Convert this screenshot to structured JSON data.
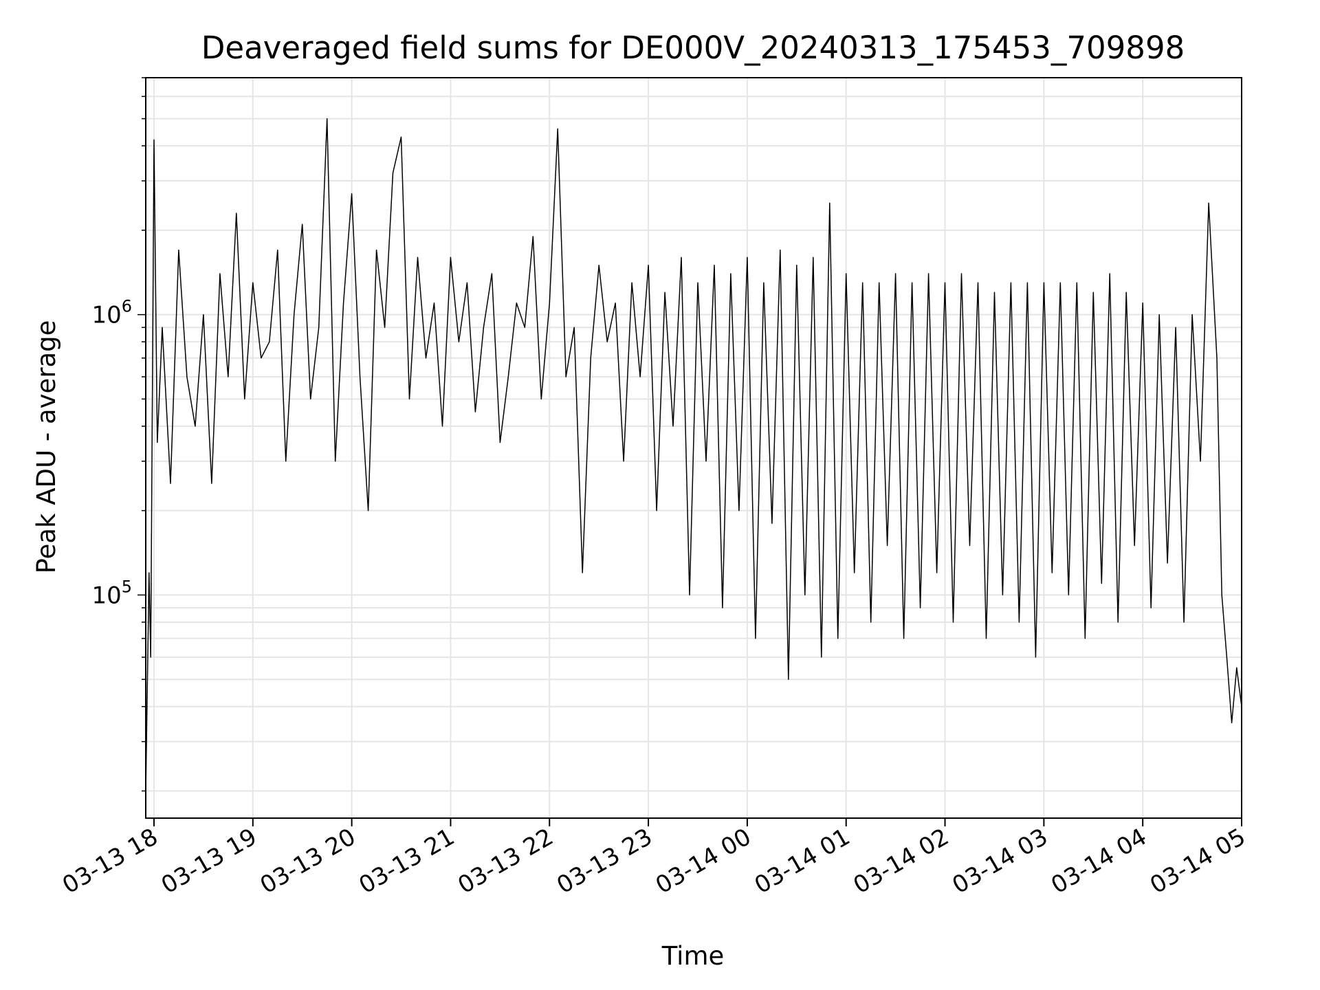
{
  "chart_data": {
    "type": "line",
    "title": "Deaveraged field sums for DE000V_20240313_175453_709898",
    "xlabel": "Time",
    "ylabel": "Peak ADU - average",
    "x_scale": "time",
    "y_scale": "log",
    "xlim": [
      "2024-03-13 17:55",
      "2024-03-14 05:00"
    ],
    "ylim": [
      16000,
      7000000
    ],
    "grid": true,
    "legend": "none",
    "line_color": "#000000",
    "grid_color": "#e5e5e5",
    "x_ticks": [
      {
        "value": "2024-03-13 18:00",
        "label": "03-13 18"
      },
      {
        "value": "2024-03-13 19:00",
        "label": "03-13 19"
      },
      {
        "value": "2024-03-13 20:00",
        "label": "03-13 20"
      },
      {
        "value": "2024-03-13 21:00",
        "label": "03-13 21"
      },
      {
        "value": "2024-03-13 22:00",
        "label": "03-13 22"
      },
      {
        "value": "2024-03-13 23:00",
        "label": "03-13 23"
      },
      {
        "value": "2024-03-14 00:00",
        "label": "03-14 00"
      },
      {
        "value": "2024-03-14 01:00",
        "label": "03-14 01"
      },
      {
        "value": "2024-03-14 02:00",
        "label": "03-14 02"
      },
      {
        "value": "2024-03-14 03:00",
        "label": "03-14 03"
      },
      {
        "value": "2024-03-14 04:00",
        "label": "03-14 04"
      },
      {
        "value": "2024-03-14 05:00",
        "label": "03-14 05"
      }
    ],
    "y_major_ticks": [
      {
        "value": 100000,
        "base": "10",
        "exp": "5"
      },
      {
        "value": 1000000,
        "base": "10",
        "exp": "6"
      }
    ],
    "series": [
      {
        "x": [
          "2024-03-13 17:55",
          "2024-03-13 17:57",
          "2024-03-13 17:58",
          "2024-03-13 18:00",
          "2024-03-13 18:02",
          "2024-03-13 18:05",
          "2024-03-13 18:10",
          "2024-03-13 18:15",
          "2024-03-13 18:20",
          "2024-03-13 18:25",
          "2024-03-13 18:30",
          "2024-03-13 18:35",
          "2024-03-13 18:40",
          "2024-03-13 18:45",
          "2024-03-13 18:50",
          "2024-03-13 18:55",
          "2024-03-13 19:00",
          "2024-03-13 19:05",
          "2024-03-13 19:10",
          "2024-03-13 19:15",
          "2024-03-13 19:20",
          "2024-03-13 19:25",
          "2024-03-13 19:30",
          "2024-03-13 19:35",
          "2024-03-13 19:40",
          "2024-03-13 19:45",
          "2024-03-13 19:50",
          "2024-03-13 19:55",
          "2024-03-13 20:00",
          "2024-03-13 20:05",
          "2024-03-13 20:10",
          "2024-03-13 20:15",
          "2024-03-13 20:20",
          "2024-03-13 20:25",
          "2024-03-13 20:30",
          "2024-03-13 20:35",
          "2024-03-13 20:40",
          "2024-03-13 20:45",
          "2024-03-13 20:50",
          "2024-03-13 20:55",
          "2024-03-13 21:00",
          "2024-03-13 21:05",
          "2024-03-13 21:10",
          "2024-03-13 21:15",
          "2024-03-13 21:20",
          "2024-03-13 21:25",
          "2024-03-13 21:30",
          "2024-03-13 21:35",
          "2024-03-13 21:40",
          "2024-03-13 21:45",
          "2024-03-13 21:50",
          "2024-03-13 21:55",
          "2024-03-13 22:00",
          "2024-03-13 22:05",
          "2024-03-13 22:10",
          "2024-03-13 22:15",
          "2024-03-13 22:20",
          "2024-03-13 22:25",
          "2024-03-13 22:30",
          "2024-03-13 22:35",
          "2024-03-13 22:40",
          "2024-03-13 22:45",
          "2024-03-13 22:50",
          "2024-03-13 22:55",
          "2024-03-13 23:00",
          "2024-03-13 23:05",
          "2024-03-13 23:10",
          "2024-03-13 23:15",
          "2024-03-13 23:20",
          "2024-03-13 23:25",
          "2024-03-13 23:30",
          "2024-03-13 23:35",
          "2024-03-13 23:40",
          "2024-03-13 23:45",
          "2024-03-13 23:50",
          "2024-03-13 23:55",
          "2024-03-14 00:00",
          "2024-03-14 00:05",
          "2024-03-14 00:10",
          "2024-03-14 00:15",
          "2024-03-14 00:20",
          "2024-03-14 00:25",
          "2024-03-14 00:30",
          "2024-03-14 00:35",
          "2024-03-14 00:40",
          "2024-03-14 00:45",
          "2024-03-14 00:50",
          "2024-03-14 00:55",
          "2024-03-14 01:00",
          "2024-03-14 01:05",
          "2024-03-14 01:10",
          "2024-03-14 01:15",
          "2024-03-14 01:20",
          "2024-03-14 01:25",
          "2024-03-14 01:30",
          "2024-03-14 01:35",
          "2024-03-14 01:40",
          "2024-03-14 01:45",
          "2024-03-14 01:50",
          "2024-03-14 01:55",
          "2024-03-14 02:00",
          "2024-03-14 02:05",
          "2024-03-14 02:10",
          "2024-03-14 02:15",
          "2024-03-14 02:20",
          "2024-03-14 02:25",
          "2024-03-14 02:30",
          "2024-03-14 02:35",
          "2024-03-14 02:40",
          "2024-03-14 02:45",
          "2024-03-14 02:50",
          "2024-03-14 02:55",
          "2024-03-14 03:00",
          "2024-03-14 03:05",
          "2024-03-14 03:10",
          "2024-03-14 03:15",
          "2024-03-14 03:20",
          "2024-03-14 03:25",
          "2024-03-14 03:30",
          "2024-03-14 03:35",
          "2024-03-14 03:40",
          "2024-03-14 03:45",
          "2024-03-14 03:50",
          "2024-03-14 03:55",
          "2024-03-14 04:00",
          "2024-03-14 04:05",
          "2024-03-14 04:10",
          "2024-03-14 04:15",
          "2024-03-14 04:20",
          "2024-03-14 04:25",
          "2024-03-14 04:30",
          "2024-03-14 04:35",
          "2024-03-14 04:40",
          "2024-03-14 04:45",
          "2024-03-14 04:48",
          "2024-03-14 04:51",
          "2024-03-14 04:54",
          "2024-03-14 04:57",
          "2024-03-14 05:00"
        ],
        "y": [
          20000,
          120000,
          60000,
          4200000,
          350000,
          900000,
          250000,
          1700000,
          600000,
          400000,
          1000000,
          250000,
          1400000,
          600000,
          2300000,
          500000,
          1300000,
          700000,
          800000,
          1700000,
          300000,
          1000000,
          2100000,
          500000,
          900000,
          5000000,
          300000,
          1100000,
          2700000,
          600000,
          200000,
          1700000,
          900000,
          3200000,
          4300000,
          500000,
          1600000,
          700000,
          1100000,
          400000,
          1600000,
          800000,
          1300000,
          450000,
          900000,
          1400000,
          350000,
          600000,
          1100000,
          900000,
          1900000,
          500000,
          1100000,
          4600000,
          600000,
          900000,
          120000,
          700000,
          1500000,
          800000,
          1100000,
          300000,
          1300000,
          600000,
          1500000,
          200000,
          1200000,
          400000,
          1600000,
          100000,
          1300000,
          300000,
          1500000,
          90000,
          1400000,
          200000,
          1600000,
          70000,
          1300000,
          180000,
          1700000,
          50000,
          1500000,
          100000,
          1600000,
          60000,
          2500000,
          70000,
          1400000,
          120000,
          1300000,
          80000,
          1300000,
          150000,
          1400000,
          70000,
          1300000,
          90000,
          1400000,
          120000,
          1300000,
          80000,
          1400000,
          150000,
          1300000,
          70000,
          1200000,
          100000,
          1300000,
          80000,
          1300000,
          60000,
          1300000,
          120000,
          1300000,
          100000,
          1300000,
          70000,
          1200000,
          110000,
          1400000,
          80000,
          1200000,
          150000,
          1100000,
          90000,
          1000000,
          130000,
          900000,
          80000,
          1000000,
          300000,
          2500000,
          700000,
          100000,
          60000,
          35000,
          55000,
          40000
        ]
      }
    ]
  }
}
